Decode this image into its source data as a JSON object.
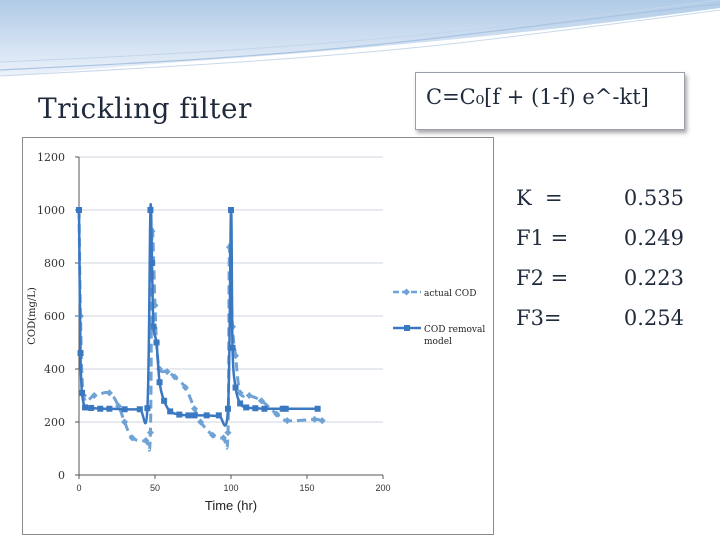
{
  "slide": {
    "title": "Trickling filter",
    "formula": "C=C₀[f + (1-f) e^-kt]"
  },
  "parameters": [
    {
      "label": "K  =",
      "value": "0.535"
    },
    {
      "label": "F1 =",
      "value": "0.249"
    },
    {
      "label": "F2 =",
      "value": "0.223"
    },
    {
      "label": "F3=",
      "value": "0.254"
    }
  ],
  "colors": {
    "actual": "#6fa3d6",
    "model": "#3b78c2",
    "grid": "#cfd5de",
    "header_wave": "#a9c4e2"
  },
  "chart_data": {
    "type": "line",
    "xlabel": "Time (hr)",
    "ylabel": "COD(mg/L)",
    "xlim": [
      0,
      200
    ],
    "ylim": [
      0,
      1200
    ],
    "xticks": [
      "0",
      "50",
      "100",
      "150",
      "200"
    ],
    "yticks": [
      "0",
      "200",
      "400",
      "600",
      "800",
      "1000",
      "1200"
    ],
    "grid": "horizontal",
    "legend_position": "right",
    "series": [
      {
        "name": "actual COD",
        "style": "dashed-diamond",
        "points": [
          [
            0,
            1000
          ],
          [
            1,
            600
          ],
          [
            3,
            300
          ],
          [
            10,
            300
          ],
          [
            20,
            310
          ],
          [
            26,
            260
          ],
          [
            30,
            200
          ],
          [
            35,
            140
          ],
          [
            44,
            130
          ],
          [
            47,
            160
          ],
          [
            48,
            920
          ],
          [
            50,
            640
          ],
          [
            51,
            500
          ],
          [
            53,
            400
          ],
          [
            58,
            390
          ],
          [
            63,
            370
          ],
          [
            70,
            330
          ],
          [
            76,
            250
          ],
          [
            80,
            200
          ],
          [
            88,
            150
          ],
          [
            95,
            140
          ],
          [
            98,
            160
          ],
          [
            99,
            860
          ],
          [
            101,
            560
          ],
          [
            103,
            450
          ],
          [
            106,
            310
          ],
          [
            112,
            300
          ],
          [
            120,
            280
          ],
          [
            130,
            230
          ],
          [
            137,
            205
          ],
          [
            155,
            210
          ],
          [
            160,
            205
          ]
        ]
      },
      {
        "name": "COD removal model",
        "style": "solid-square",
        "points": [
          [
            0,
            1000
          ],
          [
            1,
            460
          ],
          [
            2,
            310
          ],
          [
            4,
            255
          ],
          [
            8,
            253
          ],
          [
            14,
            250
          ],
          [
            20,
            250
          ],
          [
            30,
            248
          ],
          [
            40,
            248
          ],
          [
            45,
            252
          ],
          [
            47,
            1000
          ],
          [
            48,
            800
          ],
          [
            49,
            560
          ],
          [
            51,
            500
          ],
          [
            53,
            350
          ],
          [
            56,
            280
          ],
          [
            60,
            240
          ],
          [
            66,
            228
          ],
          [
            72,
            225
          ],
          [
            76,
            225
          ],
          [
            84,
            225
          ],
          [
            92,
            225
          ],
          [
            98,
            250
          ],
          [
            100,
            1000
          ],
          [
            101,
            480
          ],
          [
            103,
            330
          ],
          [
            106,
            270
          ],
          [
            110,
            255
          ],
          [
            116,
            252
          ],
          [
            122,
            250
          ],
          [
            134,
            250
          ],
          [
            136,
            250
          ],
          [
            157,
            250
          ]
        ]
      }
    ]
  }
}
